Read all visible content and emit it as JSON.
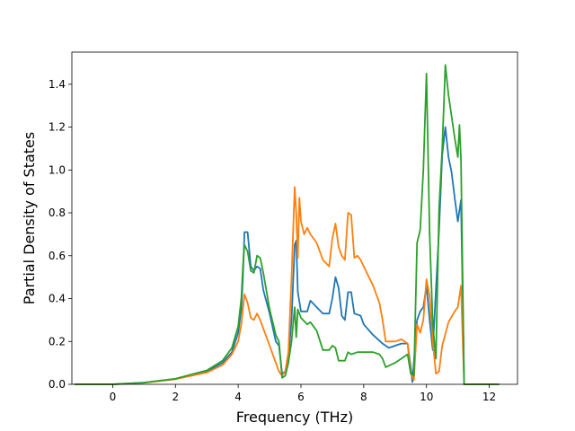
{
  "chart_data": {
    "type": "line",
    "title": "",
    "xlabel": "Frequency (THz)",
    "ylabel": "Partial Density of States",
    "xlim": [
      -1.3,
      12.9
    ],
    "ylim": [
      0.0,
      1.55
    ],
    "xticks": [
      "0",
      "2",
      "4",
      "6",
      "8",
      "10",
      "12"
    ],
    "yticks": [
      "0.0",
      "0.2",
      "0.4",
      "0.6",
      "0.8",
      "1.0",
      "1.2",
      "1.4"
    ],
    "grid": false,
    "legend": "none",
    "series": [
      {
        "color": "#1f77b4",
        "points": [
          [
            -1.2,
            0
          ],
          [
            0,
            0
          ],
          [
            1,
            0.008
          ],
          [
            2,
            0.025
          ],
          [
            3,
            0.06
          ],
          [
            3.5,
            0.1
          ],
          [
            3.8,
            0.15
          ],
          [
            4.0,
            0.24
          ],
          [
            4.1,
            0.35
          ],
          [
            4.15,
            0.5
          ],
          [
            4.2,
            0.71
          ],
          [
            4.3,
            0.71
          ],
          [
            4.4,
            0.55
          ],
          [
            4.5,
            0.53
          ],
          [
            4.6,
            0.55
          ],
          [
            4.7,
            0.54
          ],
          [
            4.8,
            0.44
          ],
          [
            5.0,
            0.33
          ],
          [
            5.2,
            0.2
          ],
          [
            5.3,
            0.18
          ],
          [
            5.4,
            0.05
          ],
          [
            5.5,
            0.06
          ],
          [
            5.6,
            0.12
          ],
          [
            5.7,
            0.3
          ],
          [
            5.8,
            0.65
          ],
          [
            5.85,
            0.67
          ],
          [
            5.9,
            0.43
          ],
          [
            6.0,
            0.34
          ],
          [
            6.2,
            0.34
          ],
          [
            6.3,
            0.39
          ],
          [
            6.5,
            0.36
          ],
          [
            6.7,
            0.33
          ],
          [
            6.9,
            0.33
          ],
          [
            7.0,
            0.4
          ],
          [
            7.1,
            0.5
          ],
          [
            7.2,
            0.45
          ],
          [
            7.3,
            0.32
          ],
          [
            7.4,
            0.3
          ],
          [
            7.5,
            0.43
          ],
          [
            7.6,
            0.43
          ],
          [
            7.7,
            0.33
          ],
          [
            7.9,
            0.32
          ],
          [
            8.0,
            0.28
          ],
          [
            8.3,
            0.23
          ],
          [
            8.6,
            0.19
          ],
          [
            8.8,
            0.17
          ],
          [
            9.2,
            0.19
          ],
          [
            9.4,
            0.19
          ],
          [
            9.5,
            0.08
          ],
          [
            9.55,
            0.01
          ],
          [
            9.7,
            0.3
          ],
          [
            9.8,
            0.34
          ],
          [
            9.9,
            0.36
          ],
          [
            10.0,
            0.46
          ],
          [
            10.1,
            0.3
          ],
          [
            10.2,
            0.16
          ],
          [
            10.4,
            0.72
          ],
          [
            10.5,
            1.07
          ],
          [
            10.6,
            1.2
          ],
          [
            10.7,
            1.06
          ],
          [
            10.8,
            0.99
          ],
          [
            10.9,
            0.87
          ],
          [
            11.0,
            0.76
          ],
          [
            11.1,
            0.86
          ],
          [
            11.2,
            0.0
          ],
          [
            12.3,
            0
          ]
        ]
      },
      {
        "color": "#ff7f0e",
        "points": [
          [
            -1.2,
            0
          ],
          [
            0,
            0
          ],
          [
            1,
            0.007
          ],
          [
            2,
            0.024
          ],
          [
            3,
            0.055
          ],
          [
            3.5,
            0.09
          ],
          [
            3.8,
            0.14
          ],
          [
            4.0,
            0.2
          ],
          [
            4.1,
            0.28
          ],
          [
            4.2,
            0.42
          ],
          [
            4.3,
            0.38
          ],
          [
            4.4,
            0.31
          ],
          [
            4.5,
            0.3
          ],
          [
            4.6,
            0.33
          ],
          [
            4.7,
            0.3
          ],
          [
            4.8,
            0.26
          ],
          [
            5.0,
            0.18
          ],
          [
            5.2,
            0.1
          ],
          [
            5.3,
            0.06
          ],
          [
            5.4,
            0.04
          ],
          [
            5.5,
            0.06
          ],
          [
            5.6,
            0.15
          ],
          [
            5.7,
            0.5
          ],
          [
            5.8,
            0.92
          ],
          [
            5.85,
            0.8
          ],
          [
            5.9,
            0.59
          ],
          [
            5.95,
            0.87
          ],
          [
            6.0,
            0.76
          ],
          [
            6.1,
            0.7
          ],
          [
            6.2,
            0.73
          ],
          [
            6.3,
            0.7
          ],
          [
            6.5,
            0.66
          ],
          [
            6.7,
            0.58
          ],
          [
            6.9,
            0.55
          ],
          [
            7.0,
            0.68
          ],
          [
            7.1,
            0.75
          ],
          [
            7.2,
            0.64
          ],
          [
            7.3,
            0.6
          ],
          [
            7.4,
            0.58
          ],
          [
            7.5,
            0.8
          ],
          [
            7.6,
            0.79
          ],
          [
            7.7,
            0.59
          ],
          [
            7.8,
            0.6
          ],
          [
            7.9,
            0.58
          ],
          [
            8.1,
            0.52
          ],
          [
            8.3,
            0.46
          ],
          [
            8.5,
            0.38
          ],
          [
            8.6,
            0.3
          ],
          [
            8.7,
            0.2
          ],
          [
            9.0,
            0.2
          ],
          [
            9.2,
            0.21
          ],
          [
            9.4,
            0.19
          ],
          [
            9.5,
            0.05
          ],
          [
            9.6,
            0.02
          ],
          [
            9.7,
            0.28
          ],
          [
            9.8,
            0.24
          ],
          [
            9.9,
            0.3
          ],
          [
            10.0,
            0.49
          ],
          [
            10.1,
            0.41
          ],
          [
            10.2,
            0.2
          ],
          [
            10.3,
            0.05
          ],
          [
            10.4,
            0.06
          ],
          [
            10.5,
            0.18
          ],
          [
            10.7,
            0.29
          ],
          [
            10.9,
            0.34
          ],
          [
            11.0,
            0.36
          ],
          [
            11.1,
            0.46
          ],
          [
            11.2,
            0.0
          ],
          [
            12.3,
            0
          ]
        ]
      },
      {
        "color": "#2ca02c",
        "points": [
          [
            -1.2,
            0
          ],
          [
            0,
            0
          ],
          [
            1,
            0.008
          ],
          [
            2,
            0.026
          ],
          [
            3,
            0.065
          ],
          [
            3.5,
            0.11
          ],
          [
            3.8,
            0.17
          ],
          [
            4.0,
            0.27
          ],
          [
            4.1,
            0.4
          ],
          [
            4.15,
            0.55
          ],
          [
            4.2,
            0.65
          ],
          [
            4.3,
            0.62
          ],
          [
            4.4,
            0.53
          ],
          [
            4.5,
            0.52
          ],
          [
            4.6,
            0.6
          ],
          [
            4.7,
            0.59
          ],
          [
            4.8,
            0.52
          ],
          [
            5.0,
            0.35
          ],
          [
            5.2,
            0.23
          ],
          [
            5.3,
            0.2
          ],
          [
            5.4,
            0.03
          ],
          [
            5.5,
            0.04
          ],
          [
            5.6,
            0.1
          ],
          [
            5.7,
            0.2
          ],
          [
            5.8,
            0.36
          ],
          [
            5.85,
            0.22
          ],
          [
            5.9,
            0.35
          ],
          [
            6.0,
            0.31
          ],
          [
            6.2,
            0.28
          ],
          [
            6.3,
            0.29
          ],
          [
            6.5,
            0.25
          ],
          [
            6.7,
            0.16
          ],
          [
            6.9,
            0.16
          ],
          [
            7.0,
            0.18
          ],
          [
            7.1,
            0.17
          ],
          [
            7.2,
            0.11
          ],
          [
            7.4,
            0.11
          ],
          [
            7.5,
            0.15
          ],
          [
            7.6,
            0.14
          ],
          [
            7.8,
            0.15
          ],
          [
            8.0,
            0.15
          ],
          [
            8.3,
            0.15
          ],
          [
            8.5,
            0.14
          ],
          [
            8.6,
            0.12
          ],
          [
            8.7,
            0.08
          ],
          [
            9.0,
            0.1
          ],
          [
            9.2,
            0.12
          ],
          [
            9.4,
            0.14
          ],
          [
            9.5,
            0.05
          ],
          [
            9.6,
            0.04
          ],
          [
            9.7,
            0.66
          ],
          [
            9.8,
            0.72
          ],
          [
            9.9,
            1.0
          ],
          [
            10.0,
            1.45
          ],
          [
            10.1,
            0.7
          ],
          [
            10.2,
            0.28
          ],
          [
            10.3,
            0.12
          ],
          [
            10.4,
            0.82
          ],
          [
            10.5,
            1.1
          ],
          [
            10.6,
            1.49
          ],
          [
            10.7,
            1.35
          ],
          [
            10.9,
            1.15
          ],
          [
            11.0,
            1.06
          ],
          [
            11.05,
            1.21
          ],
          [
            11.1,
            1.05
          ],
          [
            11.2,
            0.0
          ],
          [
            12.3,
            0
          ]
        ]
      }
    ]
  }
}
